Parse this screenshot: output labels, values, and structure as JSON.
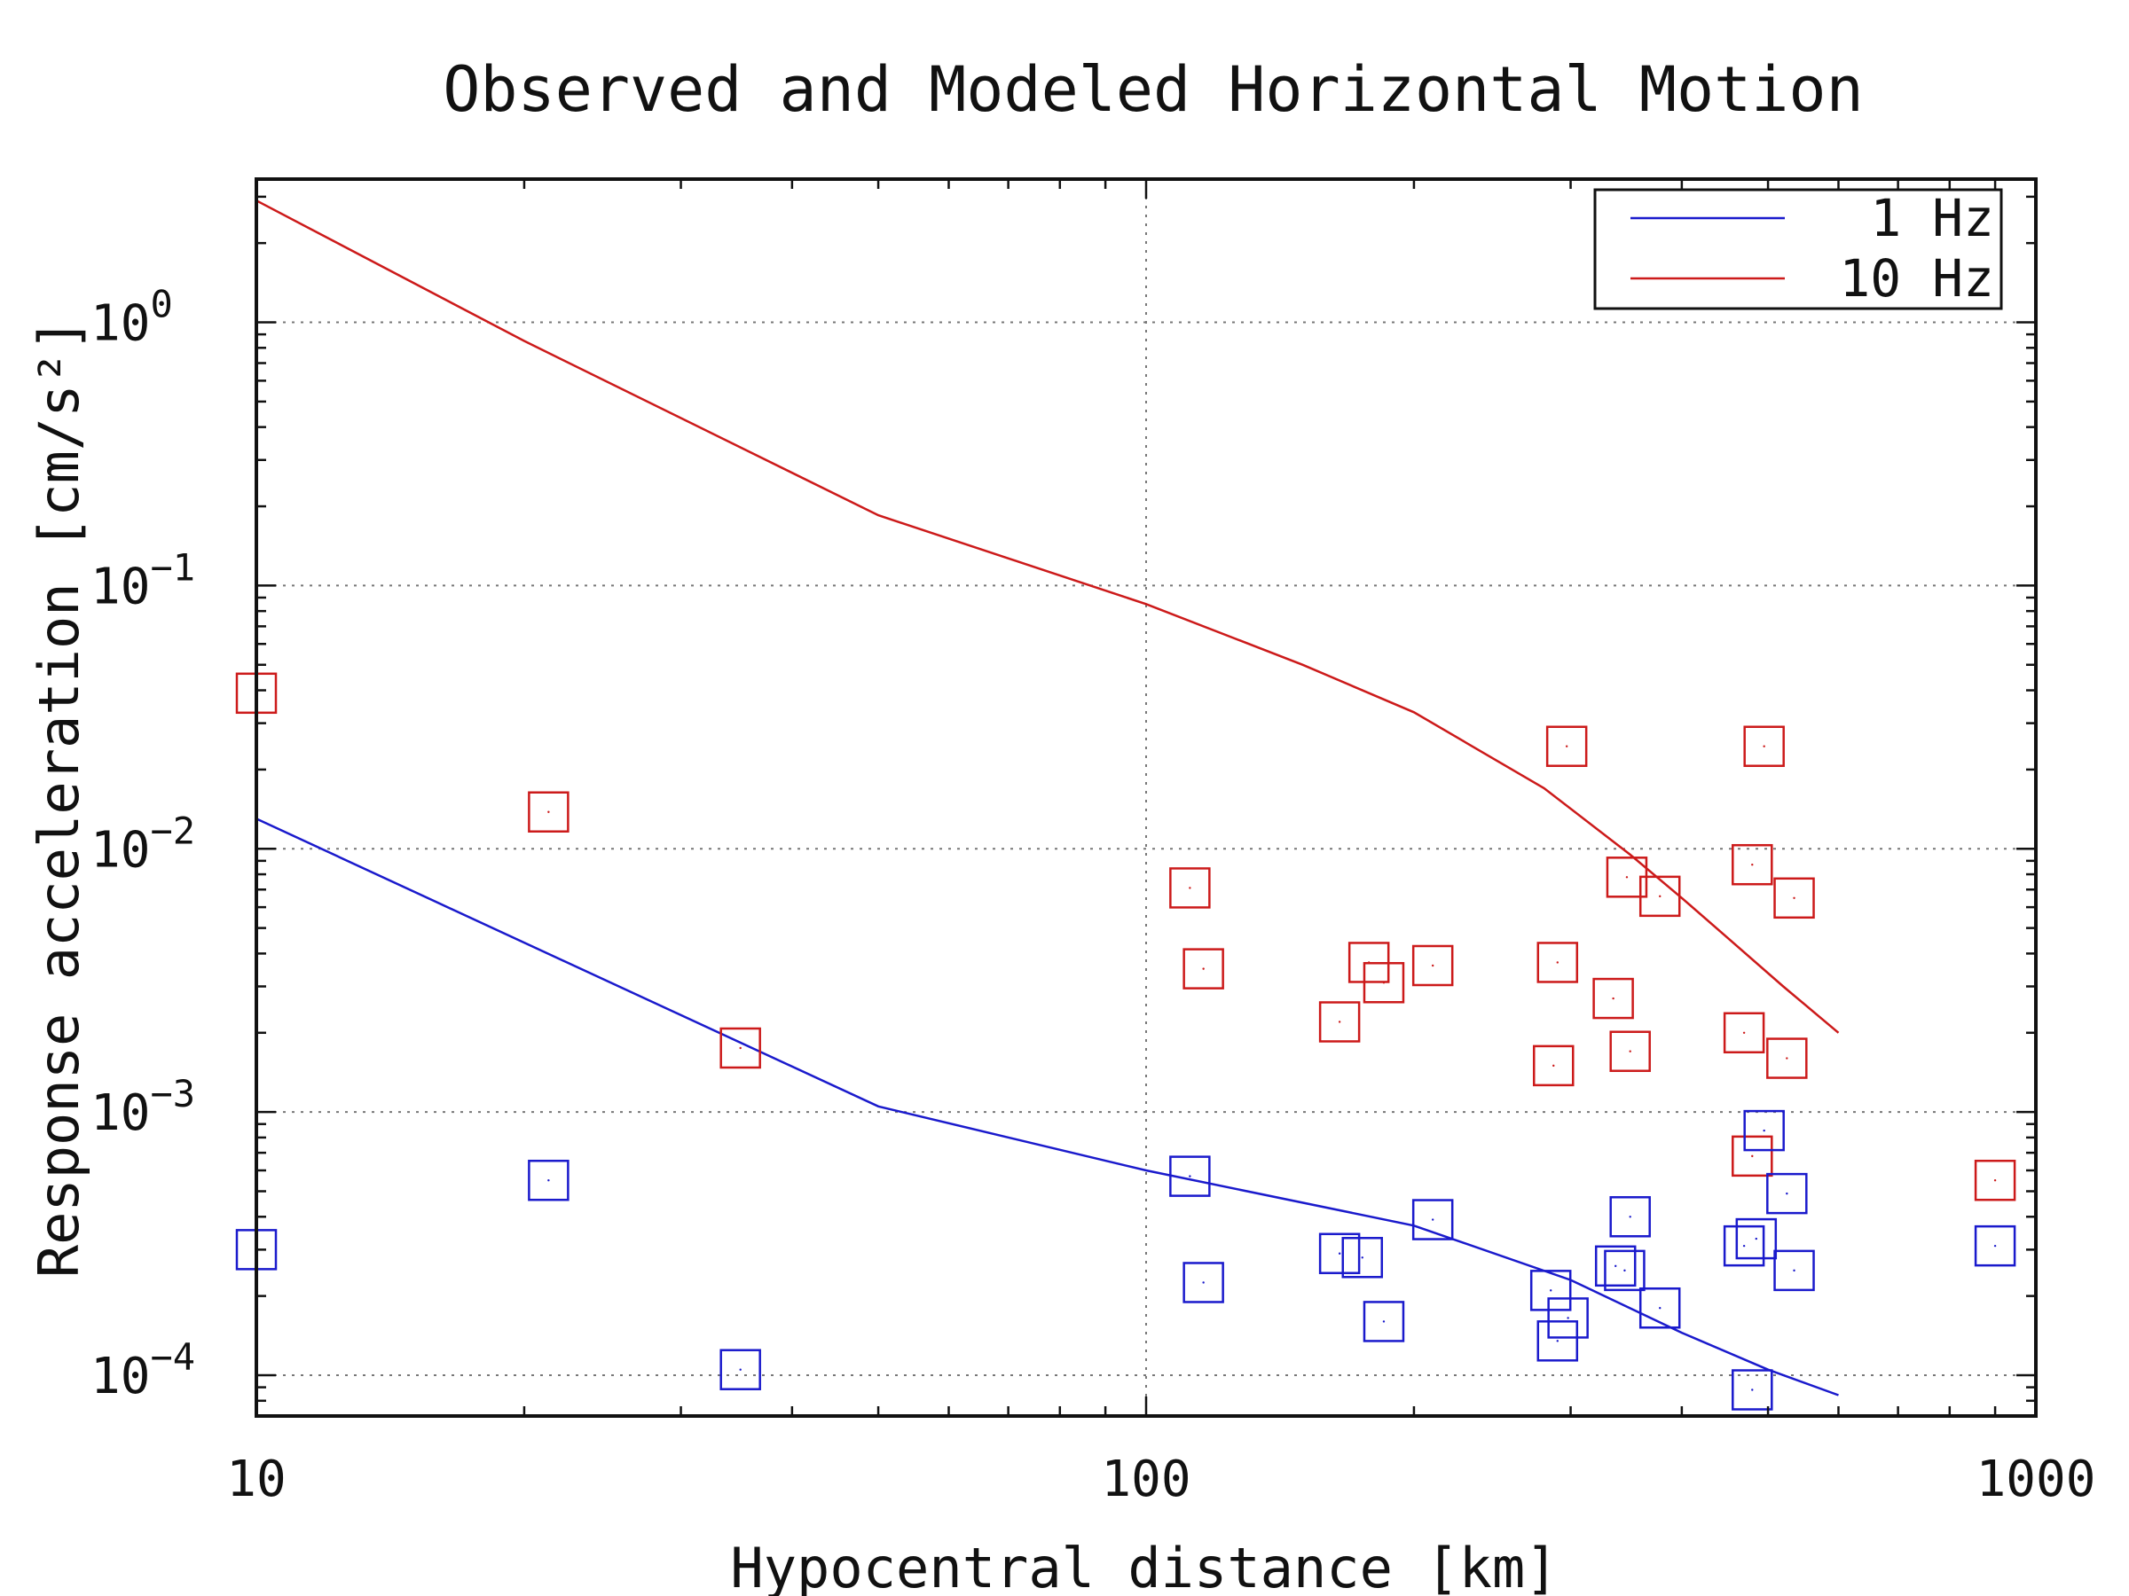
{
  "chart_data": {
    "type": "scatter",
    "title": "Observed and Modeled Horizontal Motion",
    "xlabel": "Hypocentral distance [km]",
    "ylabel": "Response acceleration [cm/s²]",
    "xscale": "log",
    "yscale": "log",
    "xlim": [
      10,
      1000
    ],
    "ylim": [
      7e-05,
      3.5
    ],
    "grid": true,
    "legend_position": "top-right",
    "x_ticks": [
      {
        "value": 10,
        "label": "10"
      },
      {
        "value": 100,
        "label": "100"
      },
      {
        "value": 1000,
        "label": "1000"
      }
    ],
    "y_ticks": [
      {
        "value": 0.0001,
        "base": "10",
        "exp": "−4"
      },
      {
        "value": 0.001,
        "base": "10",
        "exp": "−3"
      },
      {
        "value": 0.01,
        "base": "10",
        "exp": "−2"
      },
      {
        "value": 0.1,
        "base": "10",
        "exp": "−1"
      },
      {
        "value": 1,
        "base": "10",
        "exp": "0"
      }
    ],
    "series": [
      {
        "name": "1 Hz",
        "kind": "line",
        "color": "#1a1acc",
        "points": [
          [
            10,
            0.013
          ],
          [
            50,
            0.00105
          ],
          [
            100,
            0.0006
          ],
          [
            200,
            0.00037
          ],
          [
            300,
            0.00023
          ],
          [
            400,
            0.000145
          ],
          [
            500,
            0.000105
          ],
          [
            600,
            8.4e-05
          ]
        ]
      },
      {
        "name": "10 Hz",
        "kind": "line",
        "color": "#cc1a1a",
        "points": [
          [
            10,
            2.9
          ],
          [
            20,
            0.85
          ],
          [
            50,
            0.185
          ],
          [
            100,
            0.085
          ],
          [
            150,
            0.05
          ],
          [
            200,
            0.033
          ],
          [
            280,
            0.017
          ],
          [
            350,
            0.0095
          ],
          [
            400,
            0.0065
          ],
          [
            450,
            0.0046
          ],
          [
            520,
            0.003
          ],
          [
            600,
            0.002
          ]
        ]
      },
      {
        "name": "",
        "kind": "markers",
        "color": "#cc1a1a",
        "points": [
          [
            10,
            0.039
          ],
          [
            21.3,
            0.0138
          ],
          [
            35,
            0.00175
          ],
          [
            112,
            0.0071
          ],
          [
            116,
            0.0035
          ],
          [
            165,
            0.0022
          ],
          [
            178,
            0.0037
          ],
          [
            185,
            0.0031
          ],
          [
            210,
            0.0036
          ],
          [
            290,
            0.0037
          ],
          [
            287,
            0.0015
          ],
          [
            297,
            0.0245
          ],
          [
            335,
            0.0027
          ],
          [
            347,
            0.0078
          ],
          [
            350,
            0.0017
          ],
          [
            378,
            0.0066
          ],
          [
            470,
            0.002
          ],
          [
            480,
            0.0087
          ],
          [
            480,
            0.00068
          ],
          [
            495,
            0.0245
          ],
          [
            525,
            0.0016
          ],
          [
            535,
            0.0065
          ],
          [
            900,
            0.00055
          ]
        ]
      },
      {
        "name": "",
        "kind": "markers",
        "color": "#1a1acc",
        "points": [
          [
            10,
            0.0003
          ],
          [
            21.3,
            0.00055
          ],
          [
            35,
            0.000105
          ],
          [
            112,
            0.00057
          ],
          [
            116,
            0.000225
          ],
          [
            165,
            0.00029
          ],
          [
            175,
            0.00028
          ],
          [
            185,
            0.00016
          ],
          [
            210,
            0.00039
          ],
          [
            285,
            0.00021
          ],
          [
            290,
            0.000135
          ],
          [
            298,
            0.000165
          ],
          [
            337,
            0.00026
          ],
          [
            345,
            0.00025
          ],
          [
            350,
            0.0004
          ],
          [
            378,
            0.00018
          ],
          [
            470,
            0.00031
          ],
          [
            480,
            8.8e-05
          ],
          [
            485,
            0.00033
          ],
          [
            495,
            0.00085
          ],
          [
            525,
            0.00049
          ],
          [
            535,
            0.00025
          ],
          [
            900,
            0.00031
          ]
        ]
      }
    ]
  }
}
